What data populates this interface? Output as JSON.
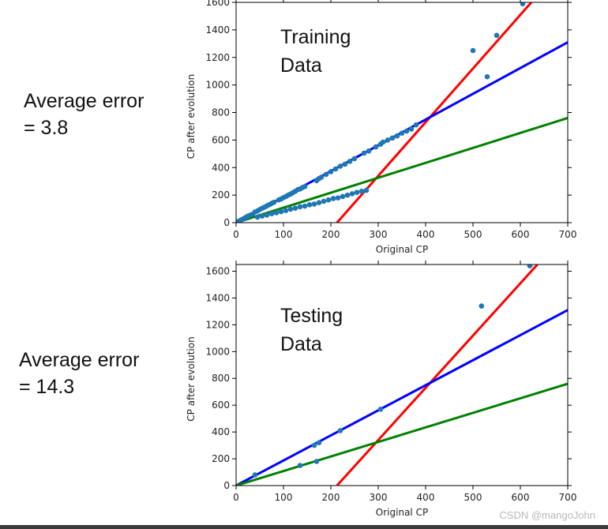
{
  "left_labels": [
    {
      "line1": "Average error",
      "line2": "= 3.8"
    },
    {
      "line1": "Average error",
      "line2": "= 14.3"
    }
  ],
  "watermark": "CSDN @mangoJohn",
  "colors": {
    "points": "#1f77b4",
    "red": "#ff0000",
    "blue": "#0000ff",
    "green": "#008000"
  },
  "chart_data": [
    {
      "type": "scatter",
      "annotation": [
        "Training",
        "Data"
      ],
      "xlabel": "Original CP",
      "ylabel": "CP after evolution",
      "xlim": [
        0,
        700
      ],
      "ylim": [
        0,
        1600
      ],
      "xticks": [
        0,
        100,
        200,
        300,
        400,
        500,
        600,
        700
      ],
      "yticks": [
        0,
        200,
        400,
        600,
        800,
        1000,
        1200,
        1400,
        1600
      ],
      "grid": false,
      "points": [
        [
          5,
          10
        ],
        [
          10,
          18
        ],
        [
          15,
          28
        ],
        [
          20,
          38
        ],
        [
          25,
          48
        ],
        [
          30,
          55
        ],
        [
          35,
          62
        ],
        [
          40,
          78
        ],
        [
          45,
          85
        ],
        [
          50,
          95
        ],
        [
          55,
          105
        ],
        [
          60,
          112
        ],
        [
          65,
          122
        ],
        [
          70,
          130
        ],
        [
          75,
          140
        ],
        [
          80,
          148
        ],
        [
          90,
          165
        ],
        [
          95,
          172
        ],
        [
          100,
          182
        ],
        [
          105,
          190
        ],
        [
          110,
          200
        ],
        [
          115,
          208
        ],
        [
          120,
          218
        ],
        [
          125,
          228
        ],
        [
          130,
          240
        ],
        [
          135,
          245
        ],
        [
          140,
          255
        ],
        [
          145,
          262
        ],
        [
          170,
          305
        ],
        [
          175,
          320
        ],
        [
          180,
          330
        ],
        [
          190,
          350
        ],
        [
          200,
          370
        ],
        [
          210,
          390
        ],
        [
          220,
          410
        ],
        [
          230,
          425
        ],
        [
          240,
          445
        ],
        [
          250,
          465
        ],
        [
          270,
          505
        ],
        [
          280,
          520
        ],
        [
          295,
          550
        ],
        [
          305,
          570
        ],
        [
          310,
          585
        ],
        [
          320,
          600
        ],
        [
          330,
          615
        ],
        [
          340,
          630
        ],
        [
          350,
          650
        ],
        [
          360,
          665
        ],
        [
          370,
          680
        ],
        [
          380,
          710
        ],
        [
          45,
          40
        ],
        [
          55,
          48
        ],
        [
          65,
          55
        ],
        [
          75,
          65
        ],
        [
          85,
          72
        ],
        [
          95,
          80
        ],
        [
          105,
          88
        ],
        [
          115,
          98
        ],
        [
          125,
          105
        ],
        [
          135,
          115
        ],
        [
          145,
          120
        ],
        [
          155,
          130
        ],
        [
          165,
          135
        ],
        [
          175,
          145
        ],
        [
          185,
          155
        ],
        [
          195,
          165
        ],
        [
          205,
          175
        ],
        [
          215,
          180
        ],
        [
          225,
          190
        ],
        [
          235,
          200
        ],
        [
          245,
          210
        ],
        [
          255,
          220
        ],
        [
          265,
          228
        ],
        [
          275,
          235
        ],
        [
          500,
          1250
        ],
        [
          530,
          1060
        ],
        [
          550,
          1360
        ],
        [
          605,
          1590
        ]
      ],
      "lines": [
        {
          "color": "red",
          "x": [
            213,
            636
          ],
          "y": [
            0,
            1650
          ]
        },
        {
          "color": "blue",
          "x": [
            0,
            700
          ],
          "y": [
            0,
            1310
          ]
        },
        {
          "color": "green",
          "x": [
            0,
            700
          ],
          "y": [
            0,
            760
          ]
        }
      ]
    },
    {
      "type": "scatter",
      "annotation": [
        "Testing",
        "Data"
      ],
      "xlabel": "Original CP",
      "ylabel": "CP after evolution",
      "xlim": [
        0,
        700
      ],
      "ylim": [
        0,
        1650
      ],
      "xticks": [
        0,
        100,
        200,
        300,
        400,
        500,
        600,
        700
      ],
      "yticks": [
        0,
        200,
        400,
        600,
        800,
        1000,
        1200,
        1400,
        1600
      ],
      "grid": false,
      "points": [
        [
          40,
          80
        ],
        [
          135,
          150
        ],
        [
          165,
          300
        ],
        [
          170,
          180
        ],
        [
          175,
          320
        ],
        [
          220,
          410
        ],
        [
          305,
          570
        ],
        [
          518,
          1340
        ],
        [
          620,
          1640
        ]
      ],
      "lines": [
        {
          "color": "red",
          "x": [
            213,
            636
          ],
          "y": [
            0,
            1650
          ]
        },
        {
          "color": "blue",
          "x": [
            0,
            700
          ],
          "y": [
            0,
            1310
          ]
        },
        {
          "color": "green",
          "x": [
            0,
            700
          ],
          "y": [
            0,
            760
          ]
        }
      ]
    }
  ]
}
